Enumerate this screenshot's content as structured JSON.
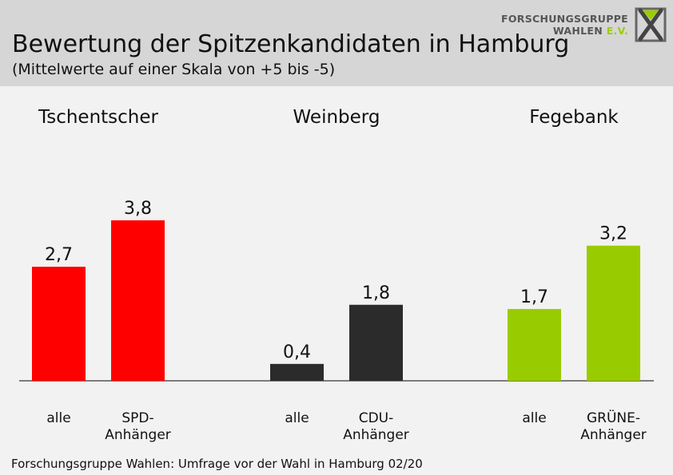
{
  "header": {
    "title": "Bewertung der Spitzenkandidaten in Hamburg",
    "subtitle": "(Mittelwerte auf einer Skala von +5 bis -5)"
  },
  "logo": {
    "line1": "FORSCHUNGSGRUPPE",
    "line2_main": "WAHLEN",
    "line2_suffix": "E.V."
  },
  "footer": {
    "source": "Forschungsgruppe Wahlen: Umfrage vor der Wahl in Hamburg 02/20"
  },
  "colors": {
    "tschentscher": "#ff0000",
    "weinberg": "#2b2b2b",
    "fegebank": "#99cc00",
    "header_bg": "#d6d6d6",
    "page_bg": "#f2f2f2"
  },
  "chart_data": {
    "type": "bar",
    "title": "",
    "ylim": [
      0,
      5
    ],
    "grid": false,
    "groups": [
      {
        "name": "Tschentscher",
        "color": "#ff0000",
        "bars": [
          {
            "label": "alle",
            "value": 2.7,
            "value_label": "2,7"
          },
          {
            "label": "SPD-\nAnhänger",
            "value": 3.8,
            "value_label": "3,8"
          }
        ]
      },
      {
        "name": "Weinberg",
        "color": "#2b2b2b",
        "bars": [
          {
            "label": "alle",
            "value": 0.4,
            "value_label": "0,4"
          },
          {
            "label": "CDU-\nAnhänger",
            "value": 1.8,
            "value_label": "1,8"
          }
        ]
      },
      {
        "name": "Fegebank",
        "color": "#99cc00",
        "bars": [
          {
            "label": "alle",
            "value": 1.7,
            "value_label": "1,7"
          },
          {
            "label": "GRÜNE-\nAnhänger",
            "value": 3.2,
            "value_label": "3,2"
          }
        ]
      }
    ]
  }
}
